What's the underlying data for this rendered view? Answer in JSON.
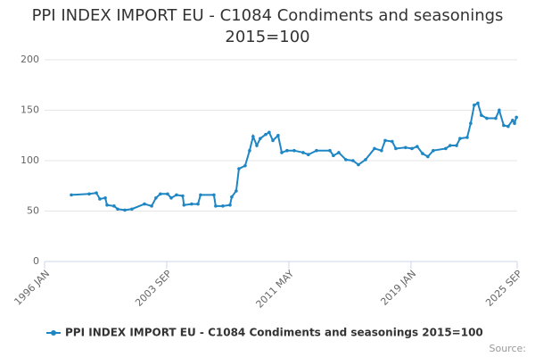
{
  "chart_data": {
    "type": "line",
    "title": "PPI INDEX IMPORT EU - C1084 Condiments and seasonings 2015=100",
    "source": "Source:",
    "x": [
      1997.68,
      1998.8,
      1999.25,
      1999.47,
      1999.81,
      1999.92,
      2000.36,
      2000.59,
      2001.04,
      2001.48,
      2002.27,
      2002.72,
      2002.99,
      2003.27,
      2003.72,
      2003.95,
      2004.28,
      2004.67,
      2004.75,
      2005.23,
      2005.63,
      2005.79,
      2006.63,
      2006.74,
      2007.19,
      2007.64,
      2007.75,
      2008.03,
      2008.2,
      2008.59,
      2008.87,
      2009.09,
      2009.32,
      2009.54,
      2009.88,
      2010.1,
      2010.33,
      2010.66,
      2010.89,
      2011.22,
      2011.67,
      2012.23,
      2012.56,
      2013.07,
      2013.91,
      2014.13,
      2014.47,
      2014.91,
      2015.36,
      2015.7,
      2016.15,
      2016.71,
      2017.15,
      2017.38,
      2017.82,
      2018.05,
      2018.66,
      2019.06,
      2019.39,
      2019.73,
      2020.06,
      2020.4,
      2021.18,
      2021.46,
      2021.86,
      2022.08,
      2022.53,
      2022.75,
      2022.97,
      2023.2,
      2023.42,
      2023.76,
      2024.32,
      2024.54,
      2024.82,
      2025.1,
      2025.38,
      2025.5,
      2025.62
    ],
    "series": [
      {
        "name": "PPI INDEX IMPORT EU - C1084 Condiments and seasonings 2015=100",
        "color": "#1f86c4",
        "values": [
          66,
          67,
          68,
          62,
          63,
          56,
          55,
          52,
          51,
          52,
          57,
          55,
          63,
          67,
          67,
          63,
          66,
          65,
          56,
          57,
          57,
          66,
          66,
          55,
          55,
          56,
          64,
          70,
          92,
          95,
          110,
          124,
          115,
          122,
          126,
          128,
          120,
          125,
          108,
          110,
          110,
          108,
          106,
          110,
          110,
          105,
          108,
          101,
          100,
          96,
          101,
          112,
          110,
          120,
          119,
          112,
          113,
          112,
          114,
          107,
          104,
          110,
          112,
          115,
          115,
          122,
          123,
          137,
          155,
          157,
          145,
          142,
          142,
          150,
          135,
          134,
          140,
          137,
          143
        ]
      }
    ],
    "xlim": [
      1996,
      2025.667
    ],
    "xticks": [
      {
        "value": 1996,
        "label": "1996 JAN"
      },
      {
        "value": 2003.667,
        "label": "2003 SEP"
      },
      {
        "value": 2011.333,
        "label": "2011 MAY"
      },
      {
        "value": 2019,
        "label": "2019 JAN"
      },
      {
        "value": 2025.667,
        "label": "2025 SEP"
      }
    ],
    "ylim": [
      0,
      200
    ],
    "yticks": [
      0,
      50,
      100,
      150,
      200
    ],
    "grid": true,
    "legend": "bottom"
  }
}
